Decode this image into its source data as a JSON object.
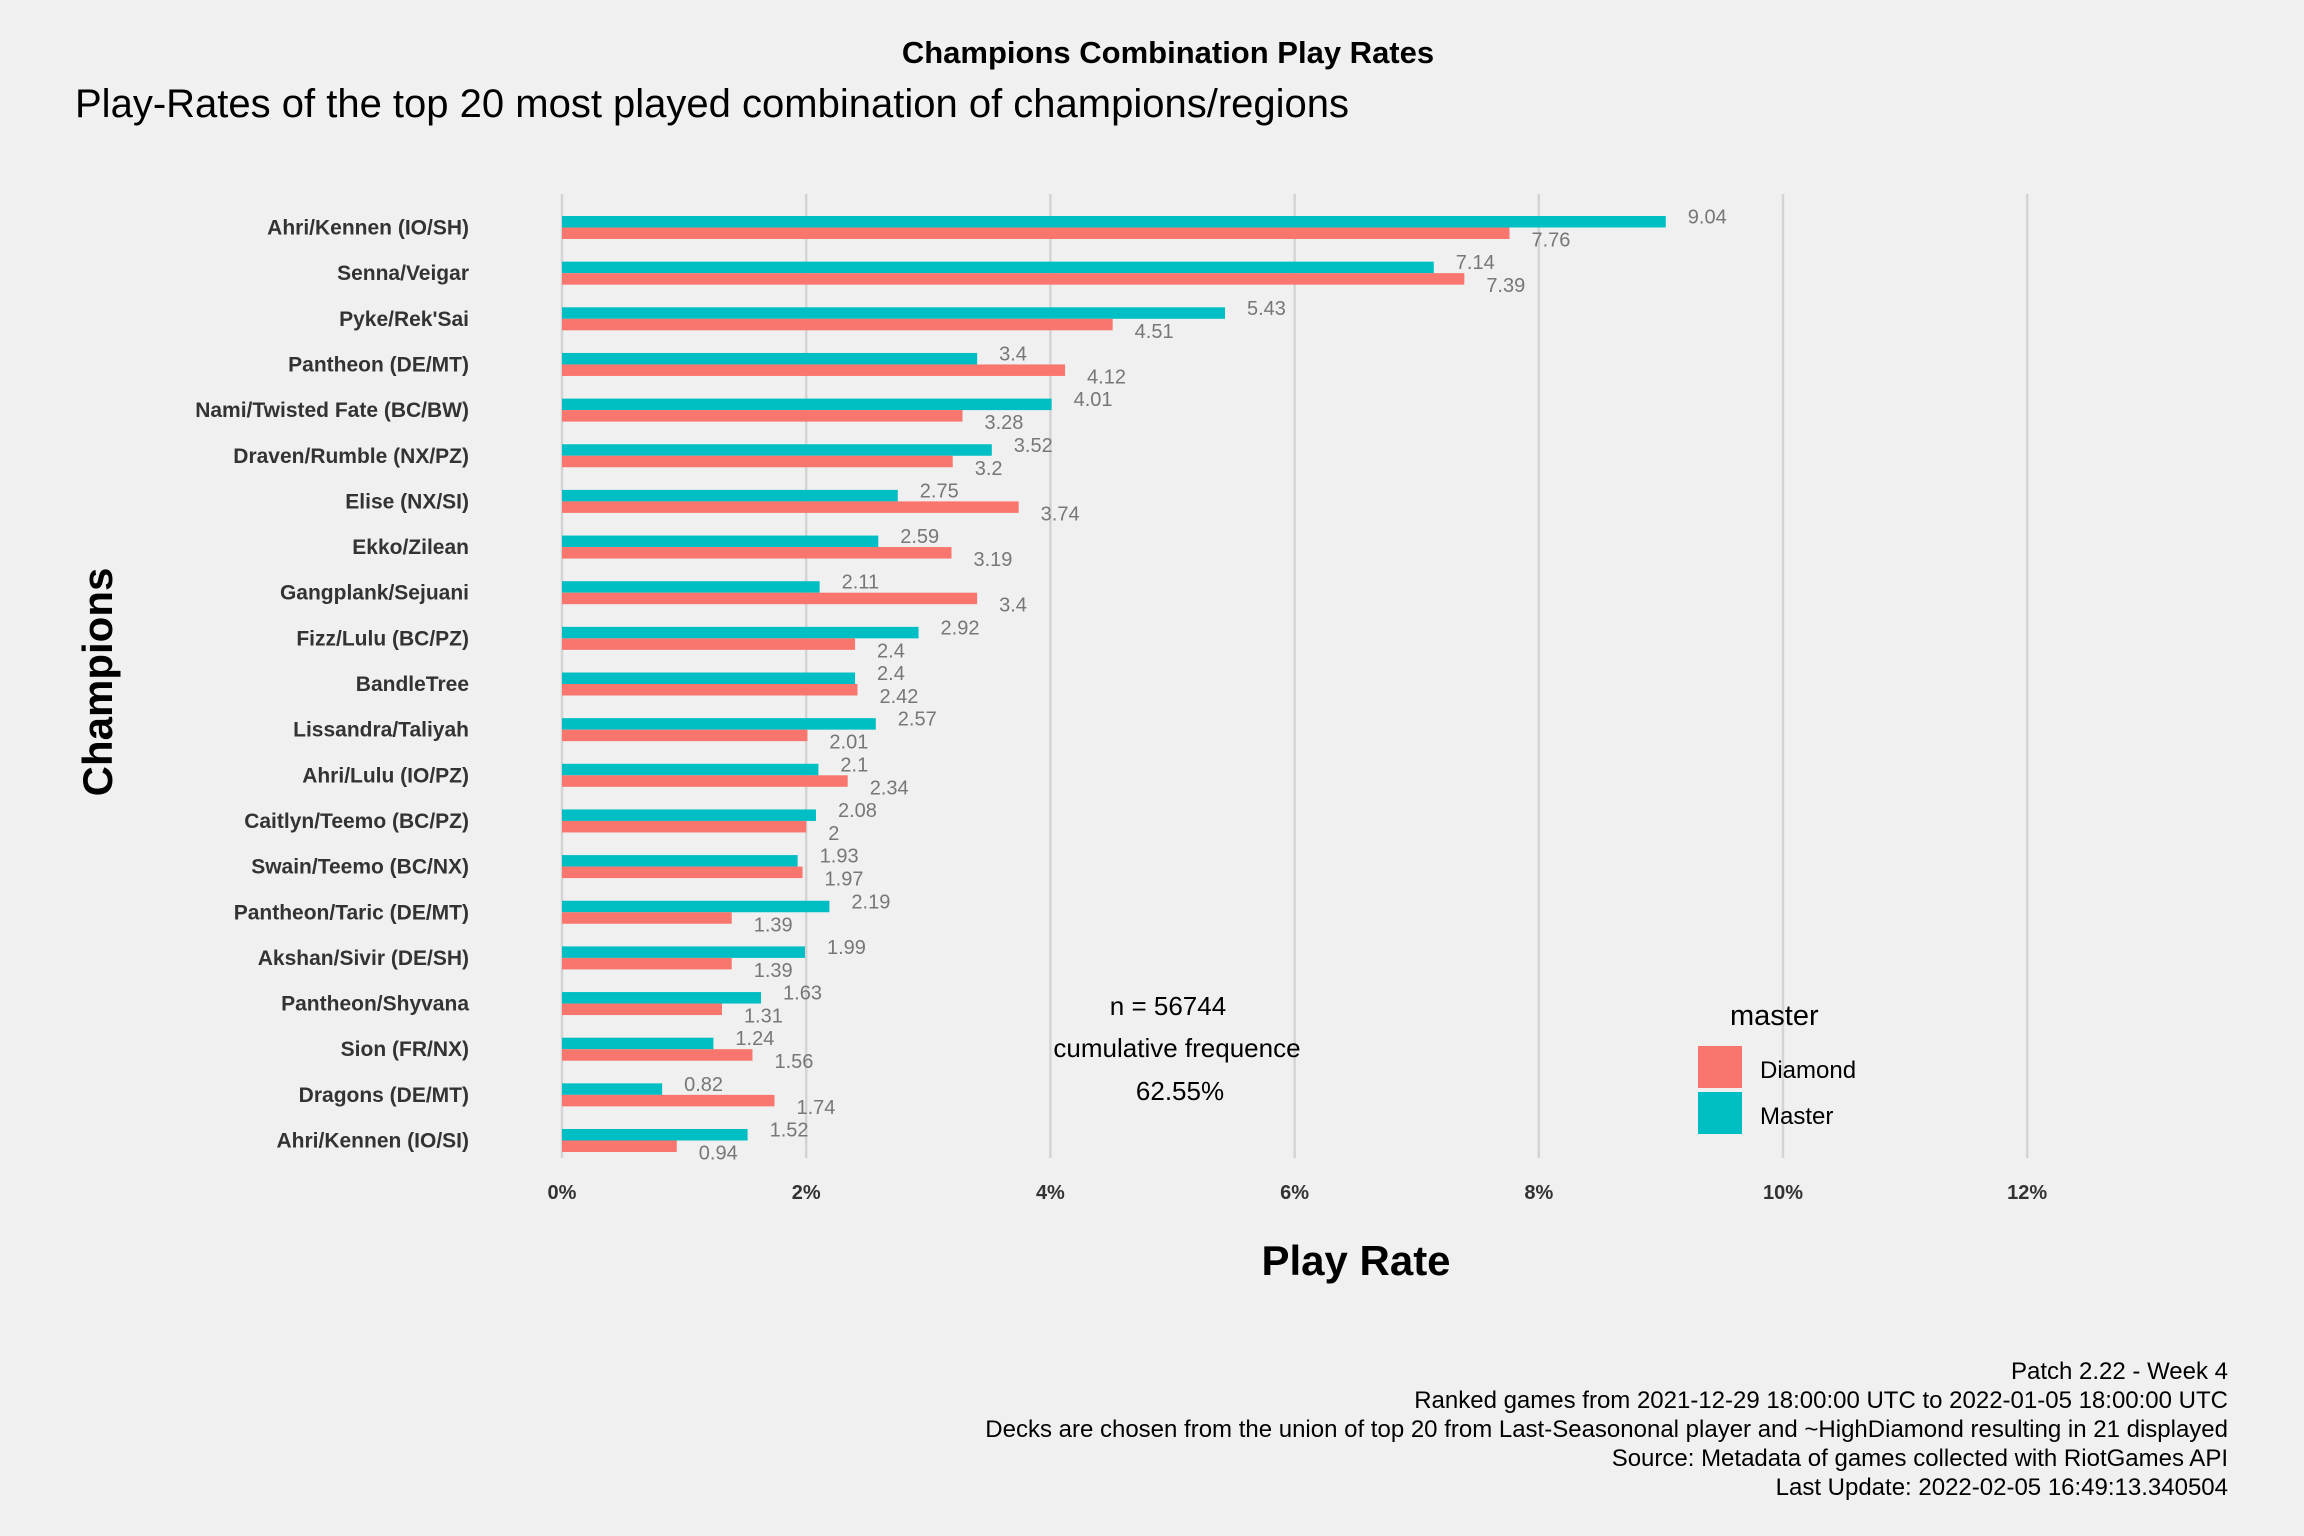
{
  "chart_data": {
    "type": "bar",
    "orientation": "horizontal",
    "title": "Champions Combination Play Rates",
    "subtitle": "Play-Rates of the top 20 most played combination of champions/regions",
    "xlabel": "Play Rate",
    "ylabel": "Champions",
    "xlim": [
      0,
      12
    ],
    "x_ticks": [
      "0%",
      "2%",
      "4%",
      "6%",
      "8%",
      "10%",
      "12%"
    ],
    "grid": "vertical major",
    "legend_title": "master",
    "legend_position": "right",
    "categories": [
      "Ahri/Kennen (IO/SH)",
      "Senna/Veigar",
      "Pyke/Rek'Sai",
      "Pantheon (DE/MT)",
      "Nami/Twisted Fate (BC/BW)",
      "Draven/Rumble (NX/PZ)",
      "Elise (NX/SI)",
      "Ekko/Zilean",
      "Gangplank/Sejuani",
      "Fizz/Lulu (BC/PZ)",
      "BandleTree",
      "Lissandra/Taliyah",
      "Ahri/Lulu (IO/PZ)",
      "Caitlyn/Teemo (BC/PZ)",
      "Swain/Teemo (BC/NX)",
      "Pantheon/Taric (DE/MT)",
      "Akshan/Sivir (DE/SH)",
      "Pantheon/Shyvana",
      "Sion (FR/NX)",
      "Dragons (DE/MT)",
      "Ahri/Kennen (IO/SI)"
    ],
    "series": [
      {
        "name": "Master",
        "color": "#00bfc4",
        "values": [
          9.04,
          7.14,
          5.43,
          3.4,
          4.01,
          3.52,
          2.75,
          2.59,
          2.11,
          2.92,
          2.4,
          2.57,
          2.1,
          2.08,
          1.93,
          2.19,
          1.99,
          1.63,
          1.24,
          0.82,
          1.52
        ],
        "labels": [
          "9.04",
          "7.14",
          "5.43",
          "3.4",
          "4.01",
          "3.52",
          "2.75",
          "2.59",
          "2.11",
          "2.92",
          "2.4",
          "2.57",
          "2.1",
          "2.08",
          "1.93",
          "2.19",
          "1.99",
          "1.63",
          "1.24",
          "0.82",
          "1.52"
        ]
      },
      {
        "name": "Diamond",
        "color": "#f8766d",
        "values": [
          7.76,
          7.39,
          4.51,
          4.12,
          3.28,
          3.2,
          3.74,
          3.19,
          3.4,
          2.4,
          2.42,
          2.01,
          2.34,
          2,
          1.97,
          1.39,
          1.39,
          1.31,
          1.56,
          1.74,
          0.94
        ],
        "labels": [
          "7.76",
          "7.39",
          "4.51",
          "4.12",
          "3.28",
          "3.2",
          "3.74",
          "3.19",
          "3.4",
          "2.4",
          "2.42",
          "2.01",
          "2.34",
          "2",
          "1.97",
          "1.39",
          "1.39",
          "1.31",
          "1.56",
          "1.74",
          "0.94"
        ]
      }
    ],
    "annotation": {
      "lines": [
        "n = 56744",
        "cumulative frequence",
        "62.55%"
      ]
    }
  },
  "caption": {
    "lines": [
      "Patch 2.22 - Week 4",
      "Ranked games from 2021-12-29 18:00:00 UTC to 2022-01-05 18:00:00 UTC",
      "Decks are chosen from the union of top 20 from Last-Seasononal player and ~HighDiamond resulting in 21 displayed",
      "Source: Metadata of games collected with RiotGames API",
      "Last Update: 2022-02-05 16:49:13.340504"
    ]
  }
}
